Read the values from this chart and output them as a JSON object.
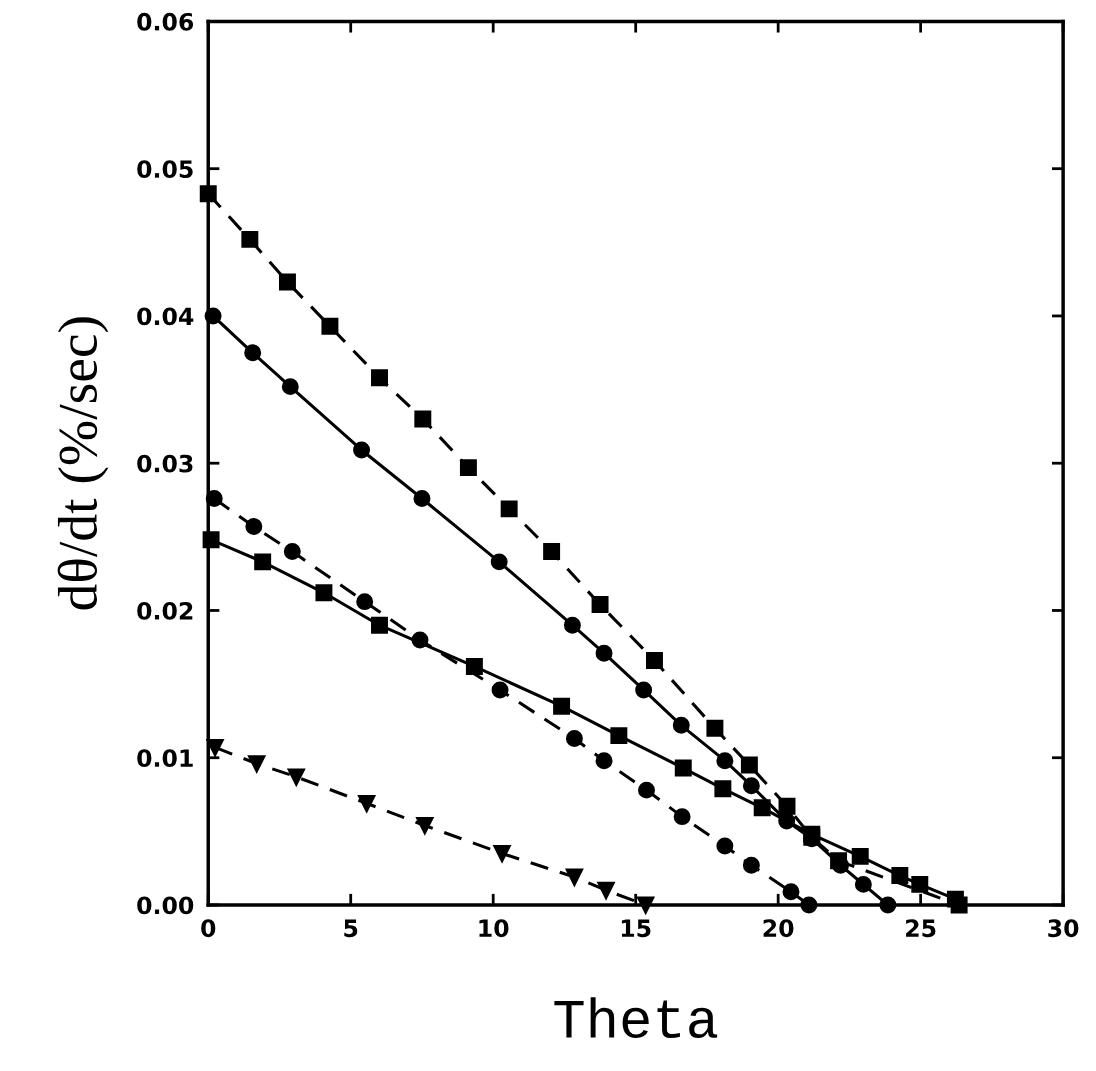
{
  "chart_data": {
    "type": "line",
    "xlabel": "Theta",
    "ylabel": "dθ/dt (%/sec)",
    "xlim": [
      0,
      30
    ],
    "xticks": [
      0,
      5,
      10,
      15,
      20,
      25,
      30
    ],
    "ylim": [
      0,
      0.06
    ],
    "yticks": [
      {
        "value": 0,
        "label": "0.00"
      },
      {
        "value": 0.01,
        "label": "0.01"
      },
      {
        "value": 0.02,
        "label": "0.02"
      },
      {
        "value": 0.03,
        "label": "0.03"
      },
      {
        "value": 0.04,
        "label": "0.04"
      },
      {
        "value": 0.05,
        "label": "0.05"
      },
      {
        "value": 0.06,
        "label": "0.06"
      }
    ],
    "grid": false,
    "legend": false,
    "series": [
      {
        "color": "#000000",
        "marker": "square",
        "line_style": "dashed",
        "x": [
          0,
          1.46,
          2.78,
          4.27,
          6.01,
          7.53,
          9.13,
          10.56,
          12.05,
          13.75,
          15.66,
          17.78,
          18.99,
          20.31,
          21.18,
          22.12,
          26.35
        ],
        "values": [
          0.0483,
          0.0452,
          0.0423,
          0.0393,
          0.0358,
          0.033,
          0.0297,
          0.0269,
          0.024,
          0.0204,
          0.0166,
          0.012,
          0.0095,
          0.0067,
          0.0046,
          0.003,
          0
        ]
      },
      {
        "color": "#000000",
        "marker": "circle",
        "line_style": "solid",
        "x": [
          0.17,
          1.56,
          2.88,
          5.38,
          7.5,
          10.21,
          12.78,
          13.89,
          15.28,
          16.6,
          18.13,
          19.06,
          20.3,
          21.18,
          22.19,
          22.99,
          23.85
        ],
        "values": [
          0.04,
          0.0375,
          0.0352,
          0.0309,
          0.0276,
          0.0233,
          0.019,
          0.0171,
          0.0146,
          0.0122,
          0.0098,
          0.0081,
          0.0057,
          0.0045,
          0.0027,
          0.0014,
          0
        ]
      },
      {
        "color": "#000000",
        "marker": "circle",
        "line_style": "dashed",
        "x": [
          0.21,
          1.6,
          2.95,
          5.49,
          7.43,
          10.24,
          12.85,
          13.89,
          15.38,
          16.63,
          18.13,
          19.06,
          20.45,
          21.08
        ],
        "values": [
          0.0276,
          0.0257,
          0.024,
          0.0206,
          0.018,
          0.0146,
          0.0113,
          0.0098,
          0.0078,
          0.006,
          0.004,
          0.0027,
          0.0009,
          0
        ]
      },
      {
        "color": "#000000",
        "marker": "square",
        "line_style": "solid",
        "x": [
          0.1,
          1.91,
          4.06,
          6.01,
          9.34,
          12.4,
          14.41,
          16.67,
          18.06,
          19.44,
          21.18,
          22.88,
          24.27,
          24.97,
          26.22
        ],
        "values": [
          0.0248,
          0.0233,
          0.0212,
          0.019,
          0.0162,
          0.0135,
          0.0115,
          0.0093,
          0.0079,
          0.0066,
          0.0048,
          0.0033,
          0.002,
          0.0014,
          0.0004
        ]
      },
      {
        "color": "#000000",
        "marker": "triangle",
        "line_style": "dashed",
        "x": [
          0.24,
          1.7,
          3.09,
          5.56,
          7.6,
          10.31,
          12.85,
          13.96,
          15.35
        ],
        "values": [
          0.0107,
          0.0096,
          0.0087,
          0.0069,
          0.0054,
          0.0035,
          0.0019,
          0.001,
          0
        ]
      }
    ]
  }
}
